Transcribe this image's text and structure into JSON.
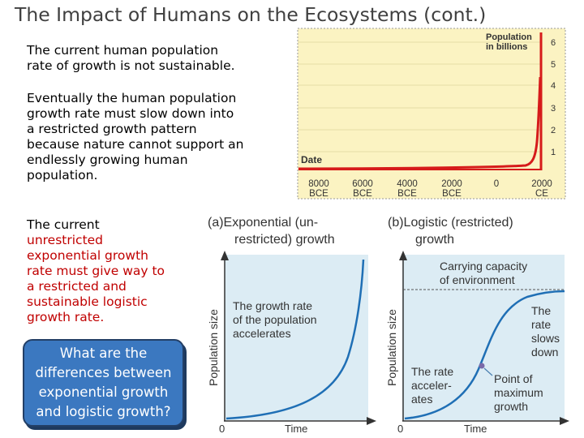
{
  "slide": {
    "title": "The Impact of Humans on the Ecosystems (cont.)",
    "p1_line1": "The current human population",
    "p1_line2": "rate of growth is not sustainable.",
    "p2_lines": [
      "Eventually the human population",
      "growth rate must slow down into",
      "a restricted growth pattern",
      "because nature cannot support an",
      "endlessly growing human",
      "population."
    ],
    "p3_line1": "The current",
    "p3_red_lines": [
      "unrestricted",
      "exponential growth",
      "rate must give way to",
      "a restricted and",
      "sustainable logistic",
      "growth rate."
    ],
    "question_lines": [
      "What are the",
      "differences between",
      "exponential growth",
      "and logistic growth?"
    ]
  },
  "population_chart": {
    "ylabel_line1": "Population",
    "ylabel_line2": "in billions",
    "xlabel": "Date",
    "yticks": [
      "6",
      "5",
      "4",
      "3",
      "2",
      "1"
    ],
    "xticks": [
      {
        "top": "8000",
        "bottom": "BCE"
      },
      {
        "top": "6000",
        "bottom": "BCE"
      },
      {
        "top": "4000",
        "bottom": "BCE"
      },
      {
        "top": "2000",
        "bottom": "BCE"
      },
      {
        "top": "0",
        "bottom": ""
      },
      {
        "top": "2000",
        "bottom": "CE"
      }
    ],
    "colors": {
      "background": "#fbf3c2",
      "line": "#d61b1b"
    }
  },
  "growth_diagrams": {
    "exponential": {
      "heading_line1": "(a)Exponential (un-",
      "heading_line2": "restricted) growth",
      "ylabel": "Population size",
      "xlabel": "Time",
      "origin": "0",
      "note_lines": [
        "The growth rate",
        "of the population",
        "accelerates"
      ]
    },
    "logistic": {
      "heading_line1": "(b)Logistic (restricted)",
      "heading_line2": "growth",
      "ylabel": "Population size",
      "xlabel": "Time",
      "origin": "0",
      "capacity_lines": [
        "Carrying capacity",
        "of environment"
      ],
      "slows_lines": [
        "The",
        "rate",
        "slows",
        "down"
      ],
      "accel_lines": [
        "The rate",
        "acceler-",
        "ates"
      ],
      "point_lines": [
        "Point of",
        "maximum",
        "growth"
      ]
    },
    "colors": {
      "panel": "#dcecf4",
      "curve": "#1f6fb5",
      "arrow": "#4a7fb0",
      "point": "#7a6aa8"
    }
  }
}
